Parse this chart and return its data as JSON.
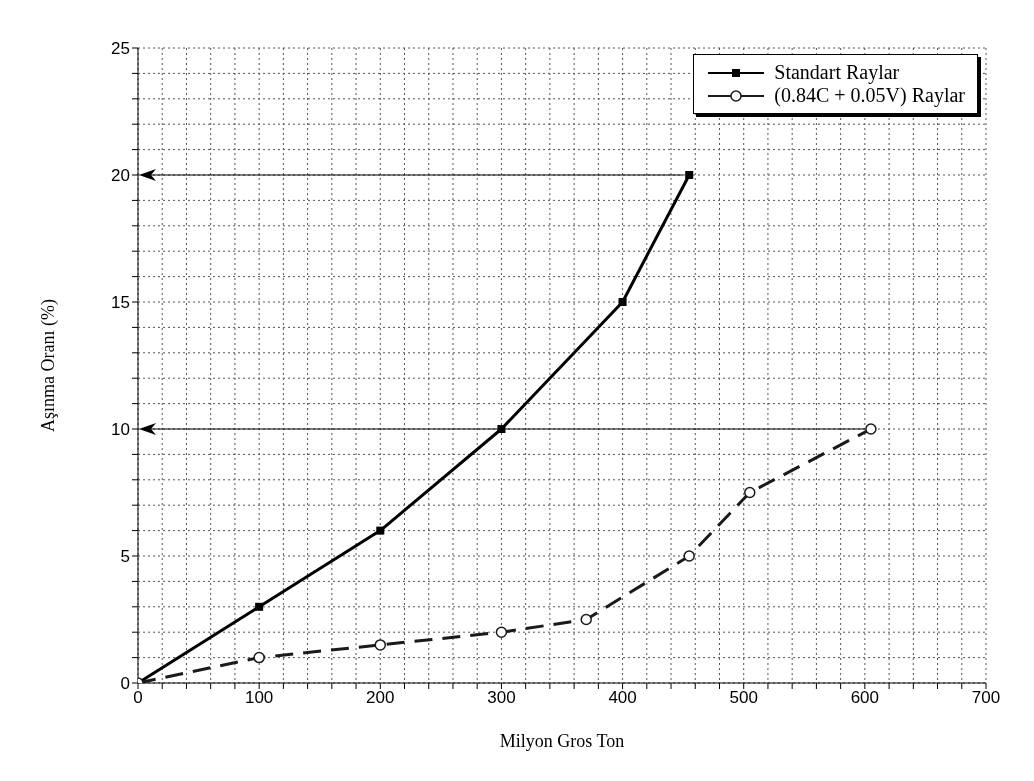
{
  "chart_data": {
    "type": "line",
    "xlabel": "Milyon Gros Ton",
    "ylabel": "Aşınma Oranı  (%)",
    "xlim": [
      0,
      700
    ],
    "xticks": [
      0,
      {
        "value": 20,
        "label": null
      },
      {
        "value": 40,
        "label": null
      },
      {
        "value": 60,
        "label": null
      },
      {
        "value": 80,
        "label": null
      },
      100,
      {
        "value": 120,
        "label": null
      },
      {
        "value": 140,
        "label": null
      },
      {
        "value": 160,
        "label": null
      },
      {
        "value": 180,
        "label": null
      },
      200,
      {
        "value": 220,
        "label": null
      },
      {
        "value": 240,
        "label": null
      },
      {
        "value": 260,
        "label": null
      },
      {
        "value": 280,
        "label": null
      },
      300,
      {
        "value": 320,
        "label": null
      },
      {
        "value": 340,
        "label": null
      },
      {
        "value": 360,
        "label": null
      },
      {
        "value": 380,
        "label": null
      },
      400,
      {
        "value": 420,
        "label": null
      },
      {
        "value": 440,
        "label": null
      },
      {
        "value": 460,
        "label": null
      },
      {
        "value": 480,
        "label": null
      },
      500,
      {
        "value": 520,
        "label": null
      },
      {
        "value": 540,
        "label": null
      },
      {
        "value": 560,
        "label": null
      },
      {
        "value": 580,
        "label": null
      },
      600,
      {
        "value": 620,
        "label": null
      },
      {
        "value": 640,
        "label": null
      },
      {
        "value": 660,
        "label": null
      },
      {
        "value": 680,
        "label": null
      },
      700
    ],
    "ylim": [
      0,
      25
    ],
    "yticks": [
      0,
      {
        "value": 1,
        "label": null
      },
      {
        "value": 2,
        "label": null
      },
      {
        "value": 3,
        "label": null
      },
      {
        "value": 4,
        "label": null
      },
      5,
      {
        "value": 6,
        "label": null
      },
      {
        "value": 7,
        "label": null
      },
      {
        "value": 8,
        "label": null
      },
      {
        "value": 9,
        "label": null
      },
      10,
      {
        "value": 11,
        "label": null
      },
      {
        "value": 12,
        "label": null
      },
      {
        "value": 13,
        "label": null
      },
      {
        "value": 14,
        "label": null
      },
      15,
      {
        "value": 16,
        "label": null
      },
      {
        "value": 17,
        "label": null
      },
      {
        "value": 18,
        "label": null
      },
      {
        "value": 19,
        "label": null
      },
      20,
      {
        "value": 21,
        "label": null
      },
      {
        "value": 22,
        "label": null
      },
      {
        "value": 23,
        "label": null
      },
      {
        "value": 24,
        "label": null
      },
      25
    ],
    "grid": true,
    "legend": "top right",
    "ref_lines": [
      {
        "axis": "y",
        "value": 20
      },
      {
        "axis": "y",
        "value": 10
      }
    ],
    "series": [
      {
        "name": "Standart Raylar",
        "color": "#000000",
        "marker": "square",
        "line_style": "solid",
        "x": [
          0,
          100,
          200,
          300,
          400,
          455
        ],
        "values": [
          0,
          3,
          6,
          10,
          15,
          20
        ]
      },
      {
        "name": "(0.84C + 0.05V) Raylar",
        "color": "#1a1a1a",
        "marker": "circle",
        "line_style": "dashed",
        "x": [
          0,
          100,
          200,
          300,
          370,
          455,
          505,
          605
        ],
        "values": [
          0,
          1,
          1.5,
          2,
          2.5,
          5,
          7.5,
          10
        ]
      }
    ]
  }
}
